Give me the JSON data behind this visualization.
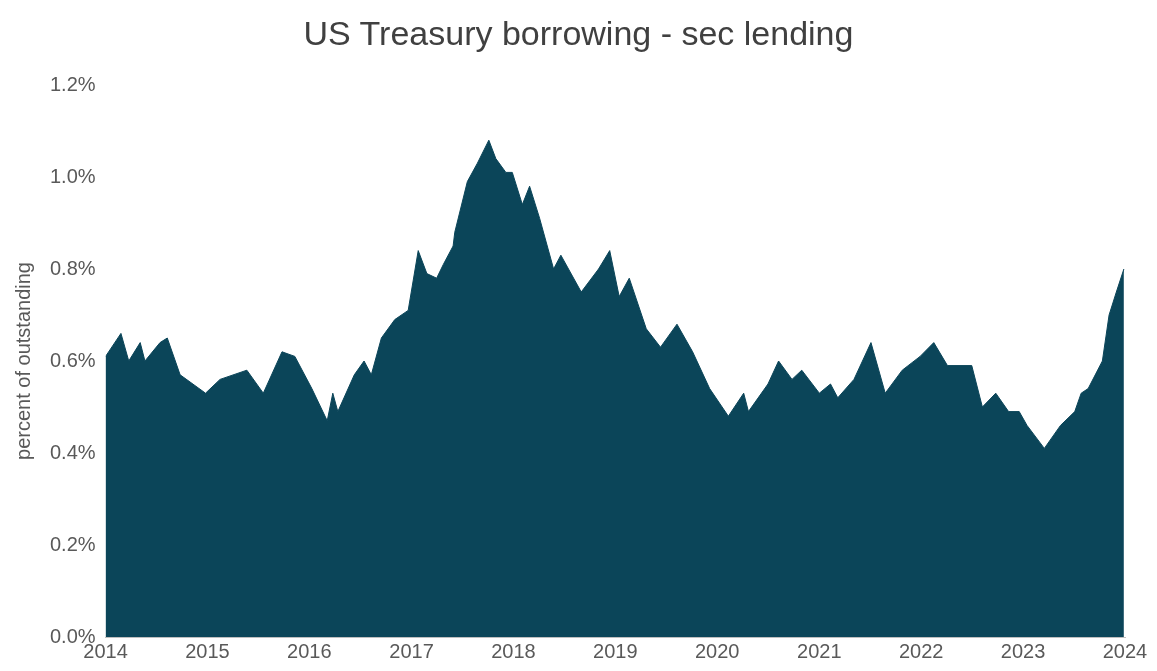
{
  "chart_data": {
    "type": "area",
    "title": "US Treasury borrowing - sec lending",
    "ylabel": "percent of outstanding",
    "xlim": [
      "2014",
      "2024"
    ],
    "xticks": [
      "2014",
      "2015",
      "2016",
      "2017",
      "2018",
      "2019",
      "2020",
      "2021",
      "2022",
      "2023",
      "2024"
    ],
    "ylim": [
      0,
      1.2
    ],
    "yticks": [
      {
        "value": 0,
        "label": "0.0%"
      },
      {
        "value": 0.2,
        "label": "0.2%"
      },
      {
        "value": 0.4,
        "label": "0.4%"
      },
      {
        "value": 0.6,
        "label": "0.6%"
      },
      {
        "value": 0.8,
        "label": "0.8%"
      },
      {
        "value": 1.0,
        "label": "1.0%"
      },
      {
        "value": 1.2,
        "label": "1.2%"
      }
    ],
    "grid": false,
    "x": [
      "2014-01-01",
      "2014-02-25",
      "2014-03-25",
      "2014-05-05",
      "2014-05-22",
      "2014-07-15",
      "2014-08-10",
      "2014-09-25",
      "2014-12-25",
      "2015-02-15",
      "2015-05-22",
      "2015-07-20",
      "2015-09-25",
      "2015-11-10",
      "2016-01-10",
      "2016-03-05",
      "2016-03-25",
      "2016-04-12",
      "2016-06-10",
      "2016-07-15",
      "2016-08-10",
      "2016-09-15",
      "2016-11-02",
      "2016-12-20",
      "2017-01-25",
      "2017-02-25",
      "2017-04-01",
      "2017-04-25",
      "2017-05-30",
      "2017-06-05",
      "2017-07-20",
      "2017-08-25",
      "2017-10-05",
      "2017-10-30",
      "2017-12-05",
      "2017-12-28",
      "2018-02-02",
      "2018-02-28",
      "2018-04-05",
      "2018-05-25",
      "2018-06-20",
      "2018-09-01",
      "2018-11-02",
      "2018-12-12",
      "2019-01-15",
      "2019-02-20",
      "2019-04-22",
      "2019-06-12",
      "2019-08-10",
      "2019-10-05",
      "2019-12-05",
      "2020-02-10",
      "2020-04-05",
      "2020-04-22",
      "2020-07-01",
      "2020-08-08",
      "2020-09-25",
      "2020-10-30",
      "2021-01-01",
      "2021-02-10",
      "2021-03-08",
      "2021-05-05",
      "2021-07-05",
      "2021-08-25",
      "2021-10-25",
      "2021-12-28",
      "2022-02-15",
      "2022-04-05",
      "2022-07-01",
      "2022-08-08",
      "2022-09-25",
      "2022-11-10",
      "2022-12-18",
      "2023-01-15",
      "2023-03-18",
      "2023-05-15",
      "2023-07-05",
      "2023-07-28",
      "2023-08-22",
      "2023-10-12",
      "2023-11-05",
      "2023-12-01",
      "2023-12-28"
    ],
    "series": [
      {
        "color": "#0b4559",
        "values": [
          0.61,
          0.66,
          0.6,
          0.64,
          0.6,
          0.64,
          0.65,
          0.57,
          0.53,
          0.56,
          0.58,
          0.53,
          0.62,
          0.61,
          0.54,
          0.47,
          0.53,
          0.49,
          0.57,
          0.6,
          0.57,
          0.65,
          0.69,
          0.71,
          0.84,
          0.79,
          0.78,
          0.81,
          0.85,
          0.88,
          0.99,
          1.03,
          1.08,
          1.04,
          1.01,
          1.01,
          0.94,
          0.98,
          0.91,
          0.8,
          0.83,
          0.75,
          0.8,
          0.84,
          0.74,
          0.78,
          0.67,
          0.63,
          0.68,
          0.62,
          0.54,
          0.48,
          0.53,
          0.49,
          0.55,
          0.6,
          0.56,
          0.58,
          0.53,
          0.55,
          0.52,
          0.56,
          0.64,
          0.53,
          0.58,
          0.61,
          0.64,
          0.59,
          0.59,
          0.5,
          0.53,
          0.49,
          0.49,
          0.46,
          0.41,
          0.46,
          0.49,
          0.53,
          0.54,
          0.6,
          0.7,
          0.75,
          0.8
        ]
      }
    ]
  }
}
